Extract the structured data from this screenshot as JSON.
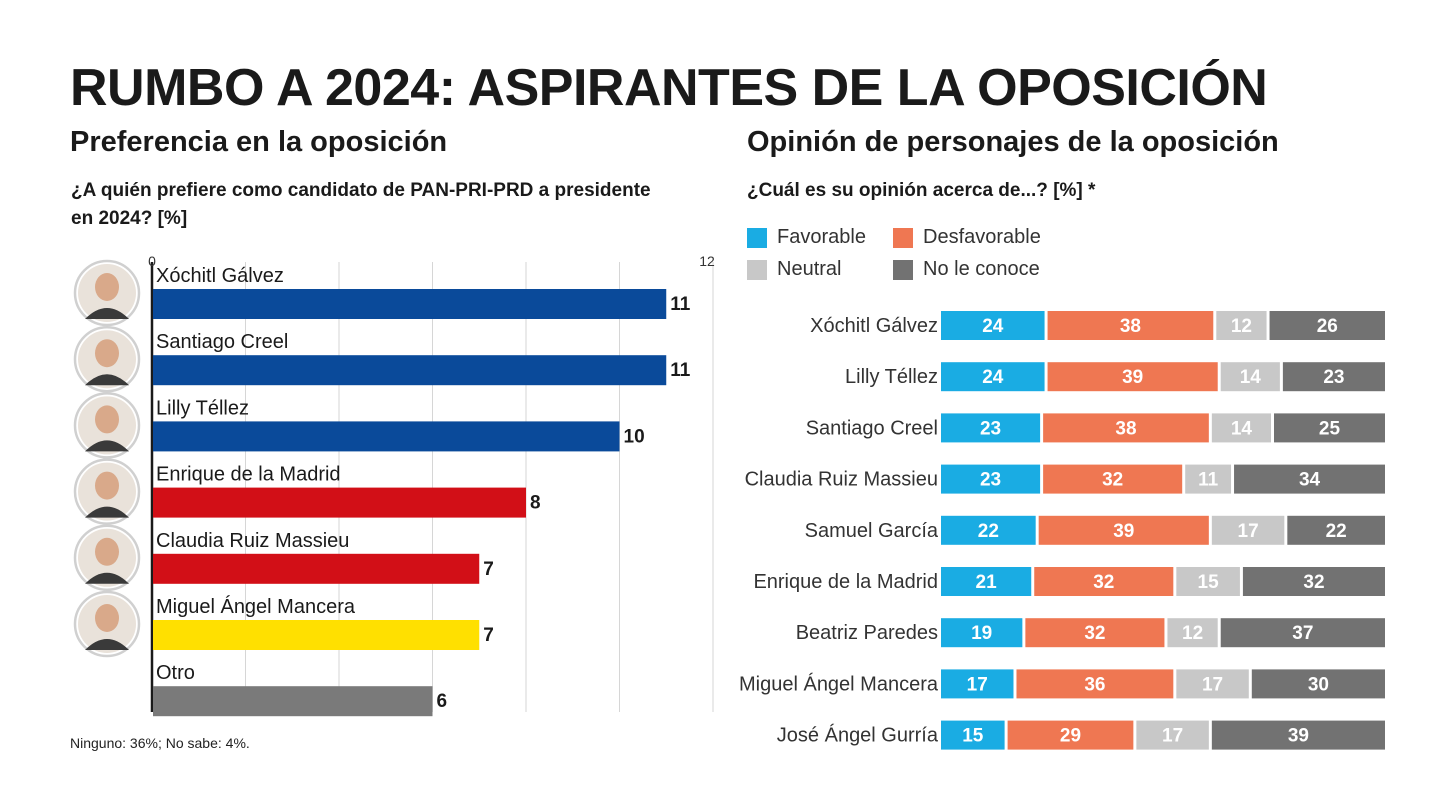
{
  "page": {
    "title": "RUMBO A 2024: ASPIRANTES DE LA OPOSICIÓN",
    "note": "Ninguno: 36%; No sabe: 4%."
  },
  "left_panel": {
    "subtitle": "Preferencia en la oposición",
    "question": "¿A quién prefiere como candidato de PAN-PRI-PRD a presidente en 2024? [%]"
  },
  "right_panel": {
    "subtitle": "Opinión de personajes de la oposición",
    "question": "¿Cuál es su opinión acerca de...? [%] *"
  },
  "chart_data": [
    {
      "type": "bar",
      "orientation": "horizontal",
      "xlim": [
        0,
        12
      ],
      "axis_ticks": [
        "0",
        "12"
      ],
      "grid": true,
      "categories": [
        "Xóchitl Gálvez",
        "Santiago Creel",
        "Lilly Téllez",
        "Enrique de la Madrid",
        "Claudia Ruiz Massieu",
        "Miguel Ángel Mancera",
        "Otro"
      ],
      "values": [
        11,
        11,
        10,
        8,
        7,
        7,
        6
      ],
      "colors": [
        "#0a4a9a",
        "#0a4a9a",
        "#0a4a9a",
        "#d20f17",
        "#d20f17",
        "#ffe000",
        "#7a7a7a"
      ],
      "avatars": [
        true,
        true,
        true,
        true,
        true,
        true,
        false
      ]
    },
    {
      "type": "bar",
      "orientation": "horizontal",
      "stacked": true,
      "legend_position": "top-left",
      "categories": [
        "Xóchitl Gálvez",
        "Lilly Téllez",
        "Santiago Creel",
        "Claudia Ruiz Massieu",
        "Samuel García",
        "Enrique de la Madrid",
        "Beatriz Paredes",
        "Miguel Ángel Mancera",
        "José Ángel Gurría"
      ],
      "series": [
        {
          "name": "Favorable",
          "color": "#1aace3",
          "values": [
            24,
            24,
            23,
            23,
            22,
            21,
            19,
            17,
            15
          ]
        },
        {
          "name": "Desfavorable",
          "color": "#ef7752",
          "values": [
            38,
            39,
            38,
            32,
            39,
            32,
            32,
            36,
            29
          ]
        },
        {
          "name": "Neutral",
          "color": "#c8c8c8",
          "values": [
            12,
            14,
            14,
            11,
            17,
            15,
            12,
            17,
            17
          ]
        },
        {
          "name": "No le conoce",
          "color": "#727272",
          "values": [
            26,
            23,
            25,
            34,
            22,
            32,
            37,
            30,
            39
          ]
        }
      ]
    }
  ]
}
